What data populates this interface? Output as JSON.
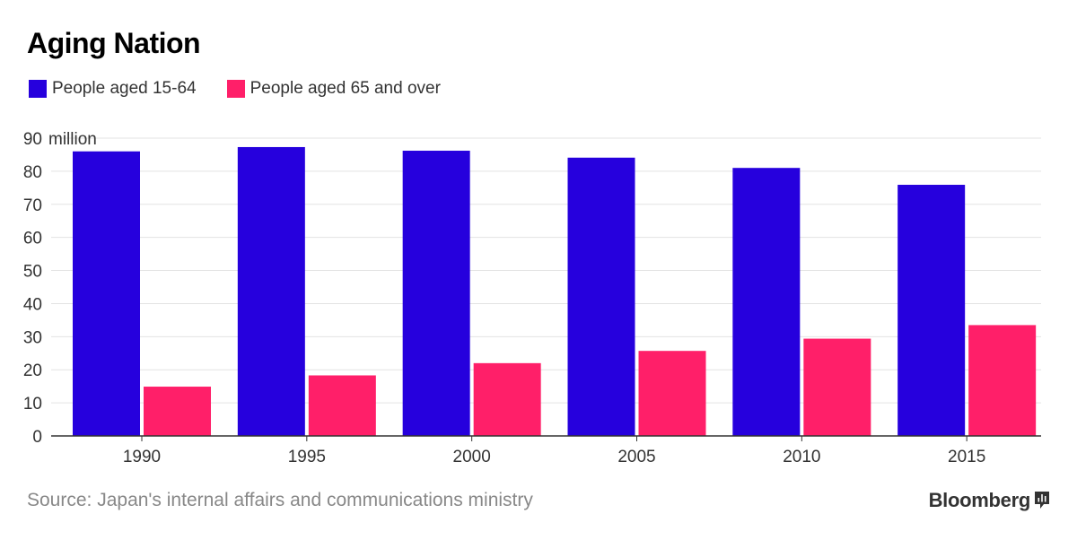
{
  "title": "Aging Nation",
  "source": "Source: Japan's internal affairs and communications ministry",
  "brand": {
    "name": "Bloomberg",
    "icon": "bloomberg-logo-icon"
  },
  "colors": {
    "series1": "#2600dd",
    "series2": "#ff1f69",
    "grid": "#e3e3e3",
    "axis": "#333333"
  },
  "chart_data": {
    "type": "bar",
    "title": "Aging Nation",
    "unit_label": "million",
    "xlabel": "",
    "ylabel": "",
    "ylim": [
      0,
      90
    ],
    "yticks": [
      "0",
      "10",
      "20",
      "30",
      "40",
      "50",
      "60",
      "70",
      "80",
      "90"
    ],
    "categories": [
      "1990",
      "1995",
      "2000",
      "2005",
      "2010",
      "2015"
    ],
    "series": [
      {
        "name": "People aged 15-64",
        "color": "#2600dd",
        "values": [
          86.0,
          87.3,
          86.2,
          84.1,
          81.0,
          75.9
        ]
      },
      {
        "name": "People aged 65 and over",
        "color": "#ff1f69",
        "values": [
          14.9,
          18.3,
          22.0,
          25.7,
          29.4,
          33.5
        ]
      }
    ],
    "legend": "top-left",
    "grid": true
  }
}
